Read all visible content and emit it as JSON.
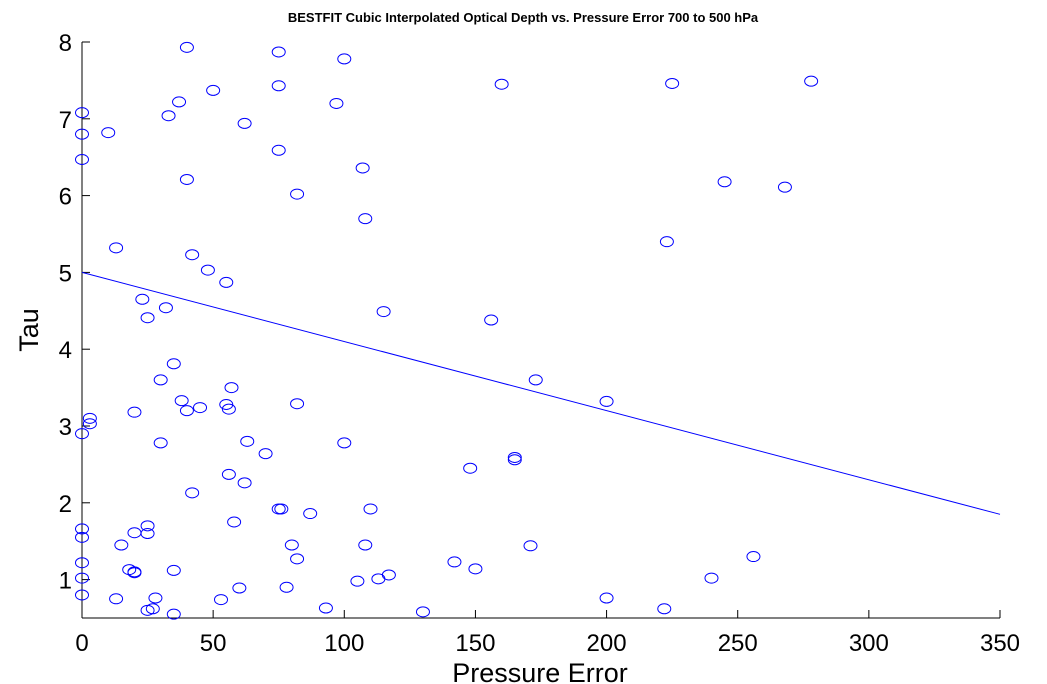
{
  "chart_data": {
    "type": "scatter",
    "title": "BESTFIT Cubic Interpolated Optical Depth vs. Pressure Error 700 to 500 hPa",
    "xlabel": "Pressure Error",
    "ylabel": "Tau",
    "xlim": [
      0,
      350
    ],
    "ylim": [
      0.5,
      8
    ],
    "xticks": [
      0,
      50,
      100,
      150,
      200,
      250,
      300,
      350
    ],
    "yticks": [
      1,
      2,
      3,
      4,
      5,
      6,
      7,
      8
    ],
    "grid": false,
    "marker": "circle",
    "colors": {
      "series": "#0000ff",
      "axes": "#000000",
      "background": "#ffffff"
    },
    "points": [
      [
        0,
        7.08
      ],
      [
        0,
        6.8
      ],
      [
        0,
        6.47
      ],
      [
        0,
        2.9
      ],
      [
        0,
        1.66
      ],
      [
        0,
        1.55
      ],
      [
        0,
        1.22
      ],
      [
        0,
        1.02
      ],
      [
        0,
        0.8
      ],
      [
        3,
        3.1
      ],
      [
        3,
        3.03
      ],
      [
        10,
        6.82
      ],
      [
        13,
        5.32
      ],
      [
        13,
        0.75
      ],
      [
        15,
        1.45
      ],
      [
        18,
        1.13
      ],
      [
        20,
        1.1
      ],
      [
        20,
        1.09
      ],
      [
        20,
        1.61
      ],
      [
        20,
        3.18
      ],
      [
        23,
        4.65
      ],
      [
        25,
        4.41
      ],
      [
        25,
        1.7
      ],
      [
        25,
        1.6
      ],
      [
        25,
        0.6
      ],
      [
        27,
        0.62
      ],
      [
        28,
        0.76
      ],
      [
        30,
        3.6
      ],
      [
        30,
        2.78
      ],
      [
        32,
        4.54
      ],
      [
        33,
        7.04
      ],
      [
        35,
        3.81
      ],
      [
        35,
        1.12
      ],
      [
        35,
        0.55
      ],
      [
        37,
        7.22
      ],
      [
        38,
        3.33
      ],
      [
        40,
        7.93
      ],
      [
        40,
        6.21
      ],
      [
        40,
        3.2
      ],
      [
        42,
        5.23
      ],
      [
        42,
        2.13
      ],
      [
        45,
        3.24
      ],
      [
        48,
        5.03
      ],
      [
        50,
        7.37
      ],
      [
        53,
        0.74
      ],
      [
        55,
        4.87
      ],
      [
        55,
        3.28
      ],
      [
        56,
        3.22
      ],
      [
        56,
        2.37
      ],
      [
        57,
        3.5
      ],
      [
        58,
        1.75
      ],
      [
        60,
        0.89
      ],
      [
        62,
        6.94
      ],
      [
        62,
        2.26
      ],
      [
        63,
        2.8
      ],
      [
        70,
        2.64
      ],
      [
        75,
        7.87
      ],
      [
        75,
        7.43
      ],
      [
        75,
        6.59
      ],
      [
        75,
        1.92
      ],
      [
        76,
        1.92
      ],
      [
        78,
        0.9
      ],
      [
        80,
        1.45
      ],
      [
        82,
        6.02
      ],
      [
        82,
        3.29
      ],
      [
        82,
        1.27
      ],
      [
        87,
        1.86
      ],
      [
        93,
        0.63
      ],
      [
        97,
        7.2
      ],
      [
        100,
        7.78
      ],
      [
        100,
        2.78
      ],
      [
        105,
        0.98
      ],
      [
        107,
        6.36
      ],
      [
        108,
        5.7
      ],
      [
        108,
        1.45
      ],
      [
        110,
        1.92
      ],
      [
        113,
        1.01
      ],
      [
        115,
        4.49
      ],
      [
        117,
        1.06
      ],
      [
        130,
        0.58
      ],
      [
        142,
        1.23
      ],
      [
        148,
        2.45
      ],
      [
        150,
        1.14
      ],
      [
        156,
        4.38
      ],
      [
        160,
        7.45
      ],
      [
        165,
        2.56
      ],
      [
        165,
        2.59
      ],
      [
        171,
        1.44
      ],
      [
        173,
        3.6
      ],
      [
        200,
        3.32
      ],
      [
        200,
        0.76
      ],
      [
        222,
        0.62
      ],
      [
        223,
        5.4
      ],
      [
        225,
        7.46
      ],
      [
        240,
        1.02
      ],
      [
        245,
        6.18
      ],
      [
        256,
        1.3
      ],
      [
        268,
        6.11
      ],
      [
        278,
        7.49
      ]
    ],
    "fit_line": {
      "x": [
        0,
        350
      ],
      "y": [
        5.0,
        1.85
      ]
    }
  }
}
